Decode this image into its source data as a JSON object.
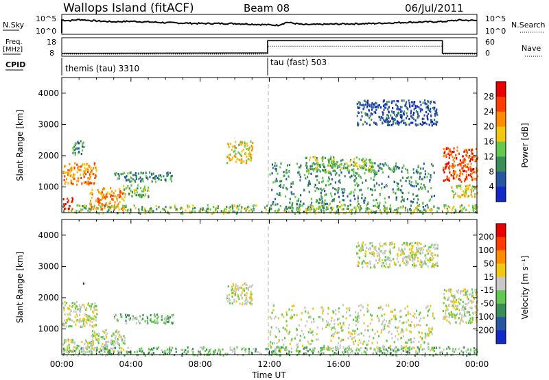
{
  "header": {
    "site": "Wallops Island (fitACF)",
    "beam": "Beam 08",
    "date": "06/Jul/2011"
  },
  "panels": {
    "nsky_label": "N.Sky",
    "nsky_ticks": [
      "10^5",
      "10^0"
    ],
    "nsearch_label": "N.Search",
    "nsearch_ticks": [
      "10^5",
      "10^0"
    ],
    "freq_label": "Freq.",
    "freq_unit": "[MHz]",
    "freq_ticks": [
      "18",
      "8"
    ],
    "nave_label": "Nave",
    "nave_ticks": [
      "60",
      "0"
    ],
    "cpid_label": "CPID",
    "cpid_modes": [
      "themis (tau) 3310",
      "tau (fast) 503"
    ]
  },
  "chart_data": [
    {
      "type": "heatmap",
      "parameter": "power",
      "ylabel": "Slant Range [km]",
      "ylim": [
        180,
        4500
      ],
      "yticks": [
        1000,
        2000,
        3000,
        4000
      ],
      "xlim": [
        0,
        24
      ],
      "colorbar": {
        "label": "Power [dB]",
        "ticks": [
          "4",
          "8",
          "12",
          "16",
          "20",
          "24",
          "28"
        ],
        "colors": [
          "#1428c8",
          "#2855a0",
          "#3c8c5a",
          "#64c850",
          "#f0c814",
          "#ff8c00",
          "#ff3c00",
          "#e60000"
        ]
      },
      "echo_regions": [
        {
          "t": [
            0.0,
            0.6
          ],
          "r": [
            300,
            700
          ],
          "level": 7
        },
        {
          "t": [
            0.0,
            2.0
          ],
          "r": [
            1100,
            1800
          ],
          "level": 5
        },
        {
          "t": [
            0.6,
            1.3
          ],
          "r": [
            2000,
            2500
          ],
          "level": 2
        },
        {
          "t": [
            1.6,
            3.6
          ],
          "r": [
            300,
            1000
          ],
          "level": 5
        },
        {
          "t": [
            3.0,
            6.5
          ],
          "r": [
            1200,
            1500
          ],
          "level": 2
        },
        {
          "t": [
            3.5,
            5.0
          ],
          "r": [
            700,
            1100
          ],
          "level": 3
        },
        {
          "t": [
            9.5,
            11.0
          ],
          "r": [
            1800,
            2500
          ],
          "level": 4
        },
        {
          "t": [
            12.0,
            21.5
          ],
          "r": [
            300,
            1800
          ],
          "level": 2
        },
        {
          "t": [
            14.0,
            18.0
          ],
          "r": [
            1500,
            2000
          ],
          "level": 3
        },
        {
          "t": [
            17.0,
            21.7
          ],
          "r": [
            3000,
            3800
          ],
          "level": 1
        },
        {
          "t": [
            22.0,
            24.0
          ],
          "r": [
            1200,
            2300
          ],
          "level": 6
        },
        {
          "t": [
            22.5,
            24.0
          ],
          "r": [
            700,
            1100
          ],
          "level": 4
        },
        {
          "t": [
            0.0,
            24.0
          ],
          "r": [
            180,
            450
          ],
          "level": 3
        }
      ]
    },
    {
      "type": "heatmap",
      "parameter": "velocity",
      "ylabel": "Slant Range [km]",
      "xlabel": "Time UT",
      "ylim": [
        180,
        4500
      ],
      "yticks": [
        1000,
        2000,
        3000,
        4000
      ],
      "xlim": [
        0,
        24
      ],
      "xticks": [
        "00:00",
        "04:00",
        "08:00",
        "12:00",
        "16:00",
        "20:00",
        "00:00"
      ],
      "colorbar": {
        "label": "Velocity [m s⁻¹]",
        "ticks": [
          "200",
          "100",
          "50",
          "15",
          "-15",
          "-50",
          "-100",
          "-200"
        ],
        "colors": [
          "#1428c8",
          "#2855a0",
          "#3c8c5a",
          "#64c850",
          "#c8c8c8",
          "#f0c814",
          "#ff8c00",
          "#ff3c00",
          "#e60000"
        ]
      },
      "echo_regions": [
        {
          "t": [
            0.0,
            2.0
          ],
          "r": [
            300,
            700
          ],
          "level": 4
        },
        {
          "t": [
            0.0,
            2.0
          ],
          "r": [
            1100,
            1900
          ],
          "level": 4
        },
        {
          "t": [
            1.0,
            1.4
          ],
          "r": [
            2400,
            2500
          ],
          "level": 0
        },
        {
          "t": [
            1.6,
            3.6
          ],
          "r": [
            300,
            1000
          ],
          "level": 4
        },
        {
          "t": [
            3.0,
            6.5
          ],
          "r": [
            1200,
            1500
          ],
          "level": 3
        },
        {
          "t": [
            9.5,
            11.0
          ],
          "r": [
            1800,
            2500
          ],
          "level": 4
        },
        {
          "t": [
            12.0,
            21.5
          ],
          "r": [
            300,
            1800
          ],
          "level": 4
        },
        {
          "t": [
            17.0,
            21.7
          ],
          "r": [
            3000,
            3800
          ],
          "level": 4
        },
        {
          "t": [
            22.0,
            24.0
          ],
          "r": [
            1200,
            2300
          ],
          "level": 4
        },
        {
          "t": [
            0.0,
            24.0
          ],
          "r": [
            180,
            450
          ],
          "level": 3
        }
      ]
    }
  ],
  "nsky_trace": [
    [
      0,
      0.75
    ],
    [
      0.5,
      0.72
    ],
    [
      1,
      0.78
    ],
    [
      2,
      0.7
    ],
    [
      3,
      0.65
    ],
    [
      4,
      0.68
    ],
    [
      6,
      0.6
    ],
    [
      8,
      0.55
    ],
    [
      10,
      0.55
    ],
    [
      12.5,
      0.45
    ],
    [
      13,
      0.62
    ],
    [
      14,
      0.48
    ],
    [
      16,
      0.52
    ],
    [
      18,
      0.55
    ],
    [
      20,
      0.62
    ],
    [
      22,
      0.66
    ],
    [
      23,
      0.75
    ],
    [
      24,
      0.72
    ]
  ],
  "freq_trace": [
    [
      0,
      0.1
    ],
    [
      11.9,
      0.12
    ],
    [
      11.9,
      0.9
    ],
    [
      22.0,
      0.9
    ],
    [
      22.0,
      0.1
    ],
    [
      24,
      0.1
    ]
  ],
  "nave_trace": [
    [
      0,
      0.05
    ],
    [
      11.9,
      0.05
    ],
    [
      11.9,
      0.55
    ],
    [
      22.0,
      0.55
    ],
    [
      22.0,
      0.05
    ],
    [
      24,
      0.05
    ]
  ]
}
